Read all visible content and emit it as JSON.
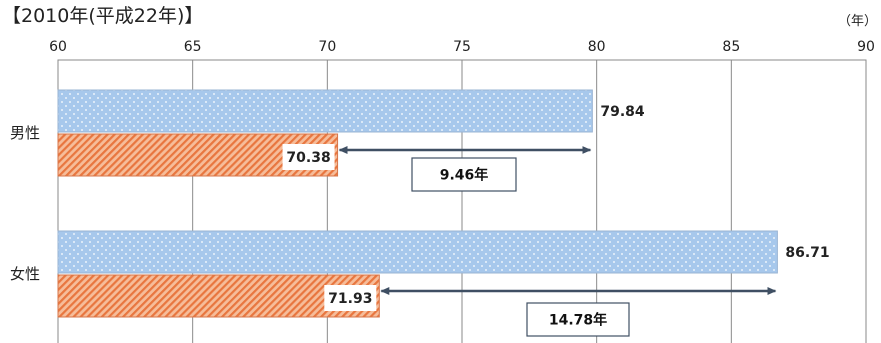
{
  "title": "【2010年(平成22年)】",
  "unit": "（年）",
  "chart_data": {
    "type": "bar",
    "orientation": "horizontal",
    "xlim": [
      60,
      90
    ],
    "xticks": [
      "60",
      "65",
      "70",
      "75",
      "80",
      "85",
      "90"
    ],
    "grid": true,
    "categories": [
      "男性",
      "女性"
    ],
    "series": [
      {
        "values": [
          79.84,
          86.71
        ],
        "color": "#a7c8ec",
        "pattern": "dots"
      },
      {
        "values": [
          70.38,
          71.93
        ],
        "color": "#f2a173",
        "pattern": "diagonal-stripes"
      }
    ],
    "gap_labels": [
      "9.46年",
      "14.78年"
    ]
  }
}
